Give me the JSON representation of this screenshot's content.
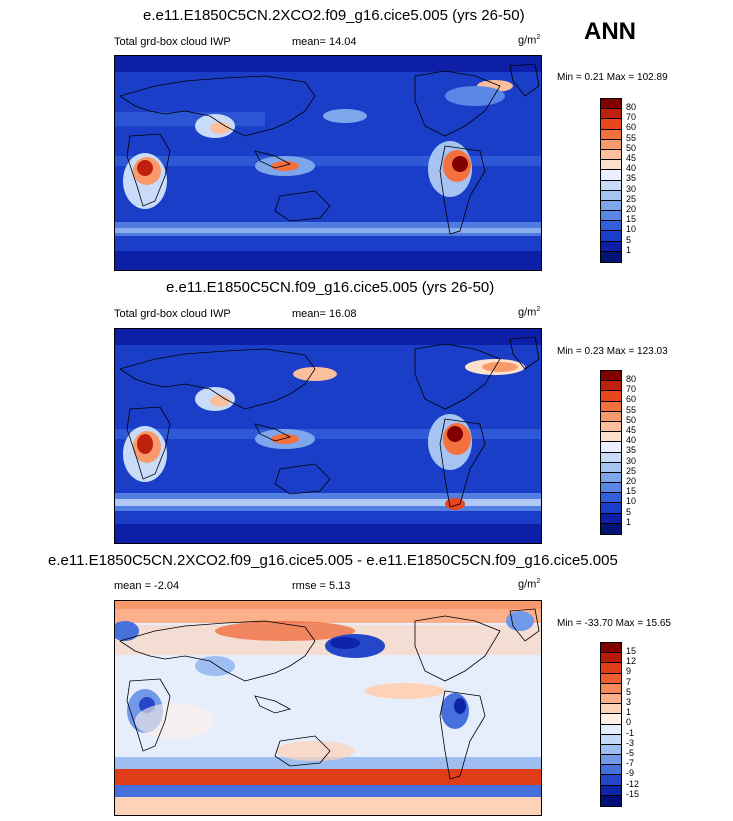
{
  "season": "ANN",
  "panels": [
    {
      "title": "e.e11.E1850C5CN.2XCO2.f09_g16.cice5.005 (yrs 26-50)",
      "var_label": "Total grd-box cloud IWP",
      "stat1": "mean=  14.04",
      "stat2": "",
      "units": "g/m",
      "units_sup": "2",
      "minmax": "Min =   0.21 Max = 102.89",
      "levels": [
        "80",
        "70",
        "60",
        "55",
        "50",
        "45",
        "40",
        "35",
        "30",
        "25",
        "20",
        "15",
        "10",
        "5",
        "1"
      ],
      "colors": [
        "#800000",
        "#c0200e",
        "#e8461e",
        "#f4703c",
        "#f89a6c",
        "#fcbf9c",
        "#fde0cc",
        "#eaf0ff",
        "#c8dcfa",
        "#a6c3f2",
        "#7ea6ec",
        "#5a86e4",
        "#3360d9",
        "#1a3ec8",
        "#0c1fa6",
        "#041272"
      ]
    },
    {
      "title": "e.e11.E1850C5CN.f09_g16.cice5.005 (yrs 26-50)",
      "var_label": "Total grd-box cloud IWP",
      "stat1": "mean=  16.08",
      "stat2": "",
      "units": "g/m",
      "units_sup": "2",
      "minmax": "Min =   0.23 Max = 123.03",
      "levels": [
        "80",
        "70",
        "60",
        "55",
        "50",
        "45",
        "40",
        "35",
        "30",
        "25",
        "20",
        "15",
        "10",
        "5",
        "1"
      ],
      "colors": [
        "#800000",
        "#c0200e",
        "#e8461e",
        "#f4703c",
        "#f89a6c",
        "#fcbf9c",
        "#fde0cc",
        "#eaf0ff",
        "#c8dcfa",
        "#a6c3f2",
        "#7ea6ec",
        "#5a86e4",
        "#3360d9",
        "#1a3ec8",
        "#0c1fa6",
        "#041272"
      ]
    },
    {
      "title": "e.e11.E1850C5CN.2XCO2.f09_g16.cice5.005 - e.e11.E1850C5CN.f09_g16.cice5.005",
      "var_label": "",
      "stat1": "mean =  -2.04",
      "stat2": "rmse =   5.13",
      "units": "g/m",
      "units_sup": "2",
      "minmax": "Min = -33.70 Max =  15.65",
      "levels": [
        "15",
        "12",
        "9",
        "7",
        "5",
        "3",
        "1",
        "0",
        "-1",
        "-3",
        "-5",
        "-7",
        "-9",
        "-12",
        "-15"
      ],
      "colors": [
        "#800000",
        "#b81a0a",
        "#e03c18",
        "#f0602e",
        "#f78a5a",
        "#fbb08a",
        "#fdd2b8",
        "#fff0e6",
        "#e6eefc",
        "#c4d8f8",
        "#9ebef2",
        "#7298e8",
        "#4670dc",
        "#2446c8",
        "#0e24a8",
        "#040e78"
      ]
    }
  ]
}
